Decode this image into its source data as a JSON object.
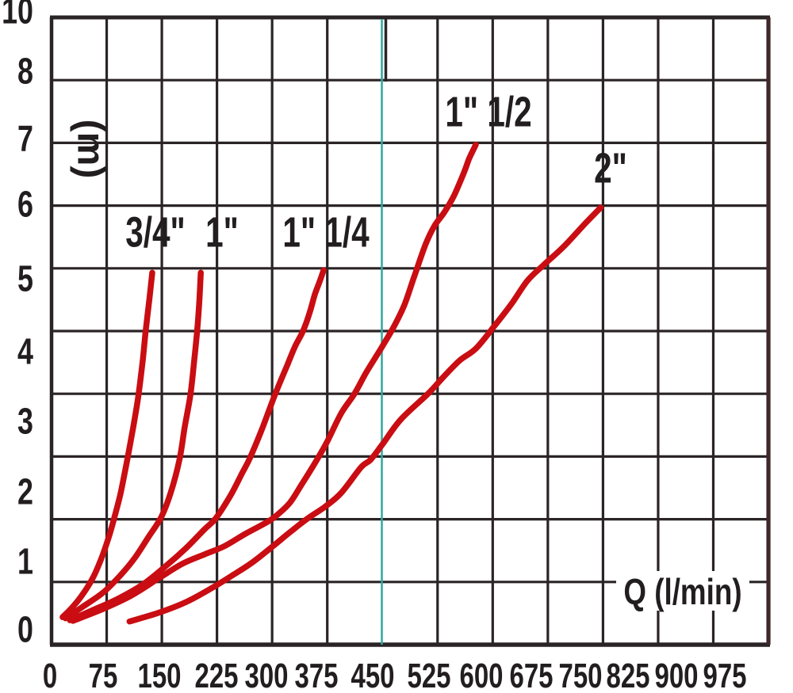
{
  "chart_data": {
    "type": "line",
    "title": "",
    "xlabel": "Q (l/min)",
    "ylabel": "(m)",
    "x_ticks": [
      "0",
      "75",
      "150",
      "225",
      "300",
      "375",
      "450",
      "525",
      "600",
      "675",
      "750",
      "825",
      "900",
      "975"
    ],
    "y_ticks": [
      "10",
      "8",
      "7",
      "6",
      "5",
      "4",
      "3",
      "2",
      "1",
      "0"
    ],
    "xlim": [
      0,
      975
    ],
    "ylim": [
      0,
      10
    ],
    "grid": true,
    "legend_position": "inline-labels",
    "highlighted_vertical_gridline": {
      "x_value": 450,
      "color": "#2ea8a1"
    },
    "series": [
      {
        "name": "3/4\"",
        "label_x": 196,
        "label_y": 294,
        "points": [
          [
            15,
            0.44
          ],
          [
            27,
            0.58
          ],
          [
            41,
            0.78
          ],
          [
            56,
            1.06
          ],
          [
            68,
            1.38
          ],
          [
            78,
            1.72
          ],
          [
            86,
            2.05
          ],
          [
            94,
            2.42
          ],
          [
            102,
            2.89
          ],
          [
            111,
            3.46
          ],
          [
            118,
            3.96
          ],
          [
            124,
            4.53
          ],
          [
            128,
            5.0
          ],
          [
            133,
            5.5
          ],
          [
            137,
            5.93
          ]
        ]
      },
      {
        "name": "1\"",
        "label_x": 280,
        "label_y": 294,
        "points": [
          [
            19,
            0.42
          ],
          [
            43,
            0.61
          ],
          [
            70,
            0.83
          ],
          [
            94,
            1.11
          ],
          [
            113,
            1.38
          ],
          [
            132,
            1.72
          ],
          [
            149,
            2.03
          ],
          [
            162,
            2.42
          ],
          [
            174,
            2.95
          ],
          [
            181,
            3.46
          ],
          [
            189,
            3.99
          ],
          [
            194,
            4.53
          ],
          [
            198,
            5.0
          ],
          [
            201,
            5.48
          ],
          [
            203,
            5.93
          ]
        ]
      },
      {
        "name": "1\" 1/4",
        "label_x": 411,
        "label_y": 294,
        "points": [
          [
            25,
            0.39
          ],
          [
            54,
            0.54
          ],
          [
            90,
            0.73
          ],
          [
            124,
            0.96
          ],
          [
            156,
            1.26
          ],
          [
            183,
            1.54
          ],
          [
            208,
            1.84
          ],
          [
            223,
            2.01
          ],
          [
            243,
            2.37
          ],
          [
            259,
            2.73
          ],
          [
            270,
            2.98
          ],
          [
            286,
            3.43
          ],
          [
            304,
            3.99
          ],
          [
            320,
            4.44
          ],
          [
            331,
            4.75
          ],
          [
            342,
            5.0
          ],
          [
            351,
            5.29
          ],
          [
            358,
            5.58
          ],
          [
            365,
            5.8
          ],
          [
            370,
            5.97
          ]
        ]
      },
      {
        "name": "1\" 1/2",
        "label_x": 616,
        "label_y": 142,
        "points": [
          [
            29,
            0.38
          ],
          [
            70,
            0.57
          ],
          [
            108,
            0.78
          ],
          [
            146,
            1.06
          ],
          [
            178,
            1.29
          ],
          [
            208,
            1.44
          ],
          [
            235,
            1.57
          ],
          [
            264,
            1.77
          ],
          [
            291,
            1.94
          ],
          [
            305,
            2.05
          ],
          [
            324,
            2.26
          ],
          [
            340,
            2.55
          ],
          [
            361,
            2.95
          ],
          [
            375,
            3.24
          ],
          [
            394,
            3.69
          ],
          [
            412,
            4.0
          ],
          [
            428,
            4.34
          ],
          [
            448,
            4.72
          ],
          [
            466,
            5.08
          ],
          [
            480,
            5.42
          ],
          [
            493,
            5.86
          ],
          [
            509,
            6.39
          ],
          [
            521,
            6.68
          ],
          [
            534,
            6.89
          ],
          [
            547,
            7.15
          ],
          [
            561,
            7.53
          ],
          [
            568,
            7.75
          ],
          [
            577,
            7.97
          ]
        ]
      },
      {
        "name": "2\"",
        "label_x": 770,
        "label_y": 213,
        "points": [
          [
            106,
            0.37
          ],
          [
            146,
            0.51
          ],
          [
            183,
            0.68
          ],
          [
            219,
            0.91
          ],
          [
            248,
            1.12
          ],
          [
            273,
            1.31
          ],
          [
            301,
            1.57
          ],
          [
            324,
            1.79
          ],
          [
            348,
            2.01
          ],
          [
            372,
            2.2
          ],
          [
            394,
            2.42
          ],
          [
            421,
            2.83
          ],
          [
            434,
            2.95
          ],
          [
            451,
            3.21
          ],
          [
            475,
            3.59
          ],
          [
            512,
            4.0
          ],
          [
            534,
            4.28
          ],
          [
            555,
            4.53
          ],
          [
            577,
            4.72
          ],
          [
            601,
            5.06
          ],
          [
            626,
            5.44
          ],
          [
            647,
            5.8
          ],
          [
            669,
            6.05
          ],
          [
            696,
            6.34
          ],
          [
            723,
            6.68
          ],
          [
            747,
            6.97
          ]
        ]
      }
    ],
    "colors": {
      "curve": "#c90d12",
      "grid": "#2b2426",
      "text": "#221e1f",
      "background": "#ffffff",
      "highlight_line": "#2ea8a1"
    }
  }
}
